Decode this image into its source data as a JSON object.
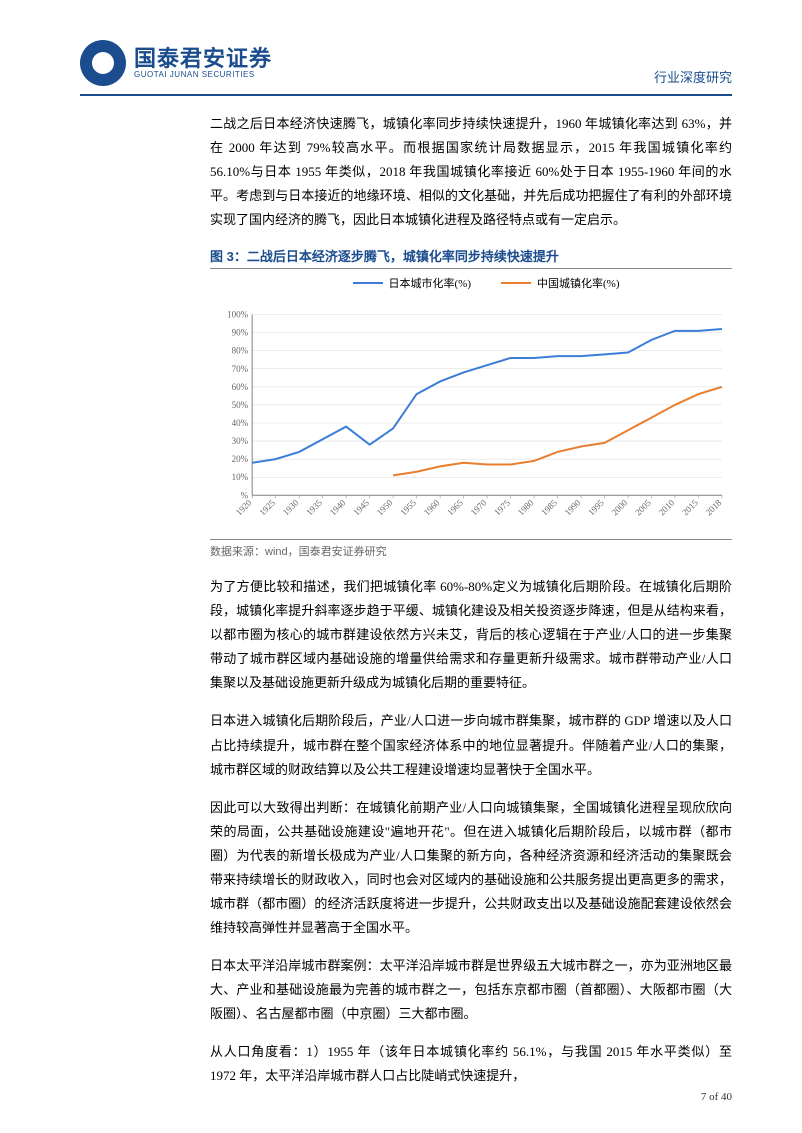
{
  "header": {
    "logo_cn": "国泰君安证券",
    "logo_en": "GUOTAI JUNAN SECURITIES",
    "doc_type": "行业深度研究"
  },
  "paragraphs": {
    "p1": "二战之后日本经济快速腾飞，城镇化率同步持续快速提升，1960 年城镇化率达到 63%，并在 2000 年达到 79%较高水平。而根据国家统计局数据显示，2015 年我国城镇化率约 56.10%与日本 1955 年类似，2018 年我国城镇化率接近 60%处于日本 1955-1960 年间的水平。考虑到与日本接近的地缘环境、相似的文化基础，并先后成功把握住了有利的外部环境实现了国内经济的腾飞，因此日本城镇化进程及路径特点或有一定启示。",
    "p2": "为了方便比较和描述，我们把城镇化率 60%-80%定义为城镇化后期阶段。在城镇化后期阶段，城镇化率提升斜率逐步趋于平缓、城镇化建设及相关投资逐步降速，但是从结构来看，以都市圈为核心的城市群建设依然方兴未艾，背后的核心逻辑在于产业/人口的进一步集聚带动了城市群区域内基础设施的增量供给需求和存量更新升级需求。城市群带动产业/人口集聚以及基础设施更新升级成为城镇化后期的重要特征。",
    "p3": "日本进入城镇化后期阶段后，产业/人口进一步向城市群集聚，城市群的 GDP 增速以及人口占比持续提升，城市群在整个国家经济体系中的地位显著提升。伴随着产业/人口的集聚，城市群区域的财政结算以及公共工程建设增速均显著快于全国水平。",
    "p4": "因此可以大致得出判断：在城镇化前期产业/人口向城镇集聚，全国城镇化进程呈现欣欣向荣的局面，公共基础设施建设\"遍地开花\"。但在进入城镇化后期阶段后，以城市群（都市圈）为代表的新增长极成为产业/人口集聚的新方向，各种经济资源和经济活动的集聚既会带来持续增长的财政收入，同时也会对区域内的基础设施和公共服务提出更高更多的需求，城市群（都市圈）的经济活跃度将进一步提升，公共财政支出以及基础设施配套建设依然会维持较高弹性并显著高于全国水平。",
    "p5": "日本太平洋沿岸城市群案例：太平洋沿岸城市群是世界级五大城市群之一，亦为亚洲地区最大、产业和基础设施最为完善的城市群之一，包括东京都市圈（首都圈）、大阪都市圈（大阪圈）、名古屋都市圈（中京圈）三大都市圈。",
    "p6": "从人口角度看：1）1955 年（该年日本城镇化率约 56.1%，与我国 2015 年水平类似）至 1972 年，太平洋沿岸城市群人口占比陡峭式快速提升，"
  },
  "figure": {
    "title": "图 3：二战后日本经济逐步腾飞，城镇化率同步持续快速提升",
    "source": "数据来源：wind，国泰君安证券研究",
    "chart": {
      "type": "line",
      "series": [
        {
          "name": "日本城市化率(%)",
          "color": "#3b7dd8"
        },
        {
          "name": "中国城镇化率(%)",
          "color": "#e87e2e"
        }
      ],
      "x_labels": [
        "1920",
        "1925",
        "1930",
        "1935",
        "1940",
        "1945",
        "1950",
        "1955",
        "1960",
        "1965",
        "1970",
        "1975",
        "1980",
        "1985",
        "1990",
        "1995",
        "2000",
        "2005",
        "2010",
        "2015",
        "2018"
      ],
      "y_labels": [
        "%",
        "10%",
        "20%",
        "30%",
        "40%",
        "50%",
        "60%",
        "70%",
        "80%",
        "90%",
        "100%"
      ],
      "ylim": [
        0,
        100
      ],
      "ytick_step": 10,
      "japan_values": [
        18,
        20,
        24,
        31,
        38,
        28,
        37,
        56,
        63,
        68,
        72,
        76,
        76,
        77,
        77,
        78,
        79,
        86,
        91,
        91,
        92
      ],
      "china_values": [
        null,
        null,
        null,
        null,
        null,
        null,
        11,
        13,
        16,
        18,
        17,
        17,
        19,
        24,
        27,
        29,
        36,
        43,
        50,
        56,
        60
      ],
      "background_color": "#ffffff",
      "grid_color": "#d9d9d9",
      "axis_color": "#808080",
      "label_fontsize": 9,
      "line_width": 2
    }
  },
  "footer": {
    "page": "7 of 40"
  }
}
